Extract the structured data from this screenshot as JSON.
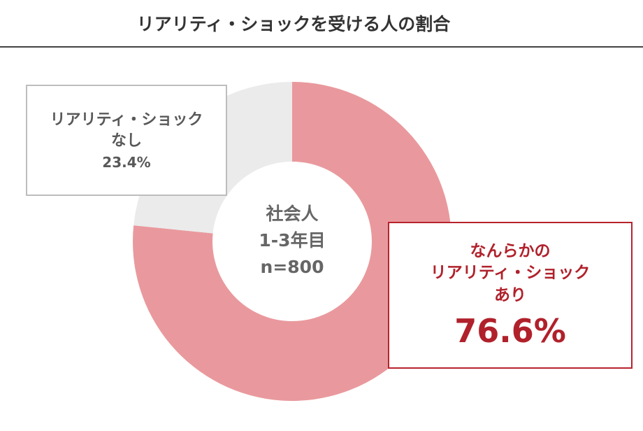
{
  "chart_data": {
    "type": "donut",
    "title": "リアリティ・ショックを受ける人の割合",
    "categories": [
      "なんらかの\nリアリティ・ショック\nあり",
      "リアリティ・ショック\nなし"
    ],
    "values": [
      76.6,
      23.4
    ],
    "value_labels": [
      "76.6%",
      "23.4%"
    ],
    "colors": [
      "#e9999d",
      "#ebebeb"
    ],
    "center_text": [
      "社会人",
      "1-3年目",
      "n=800"
    ]
  }
}
